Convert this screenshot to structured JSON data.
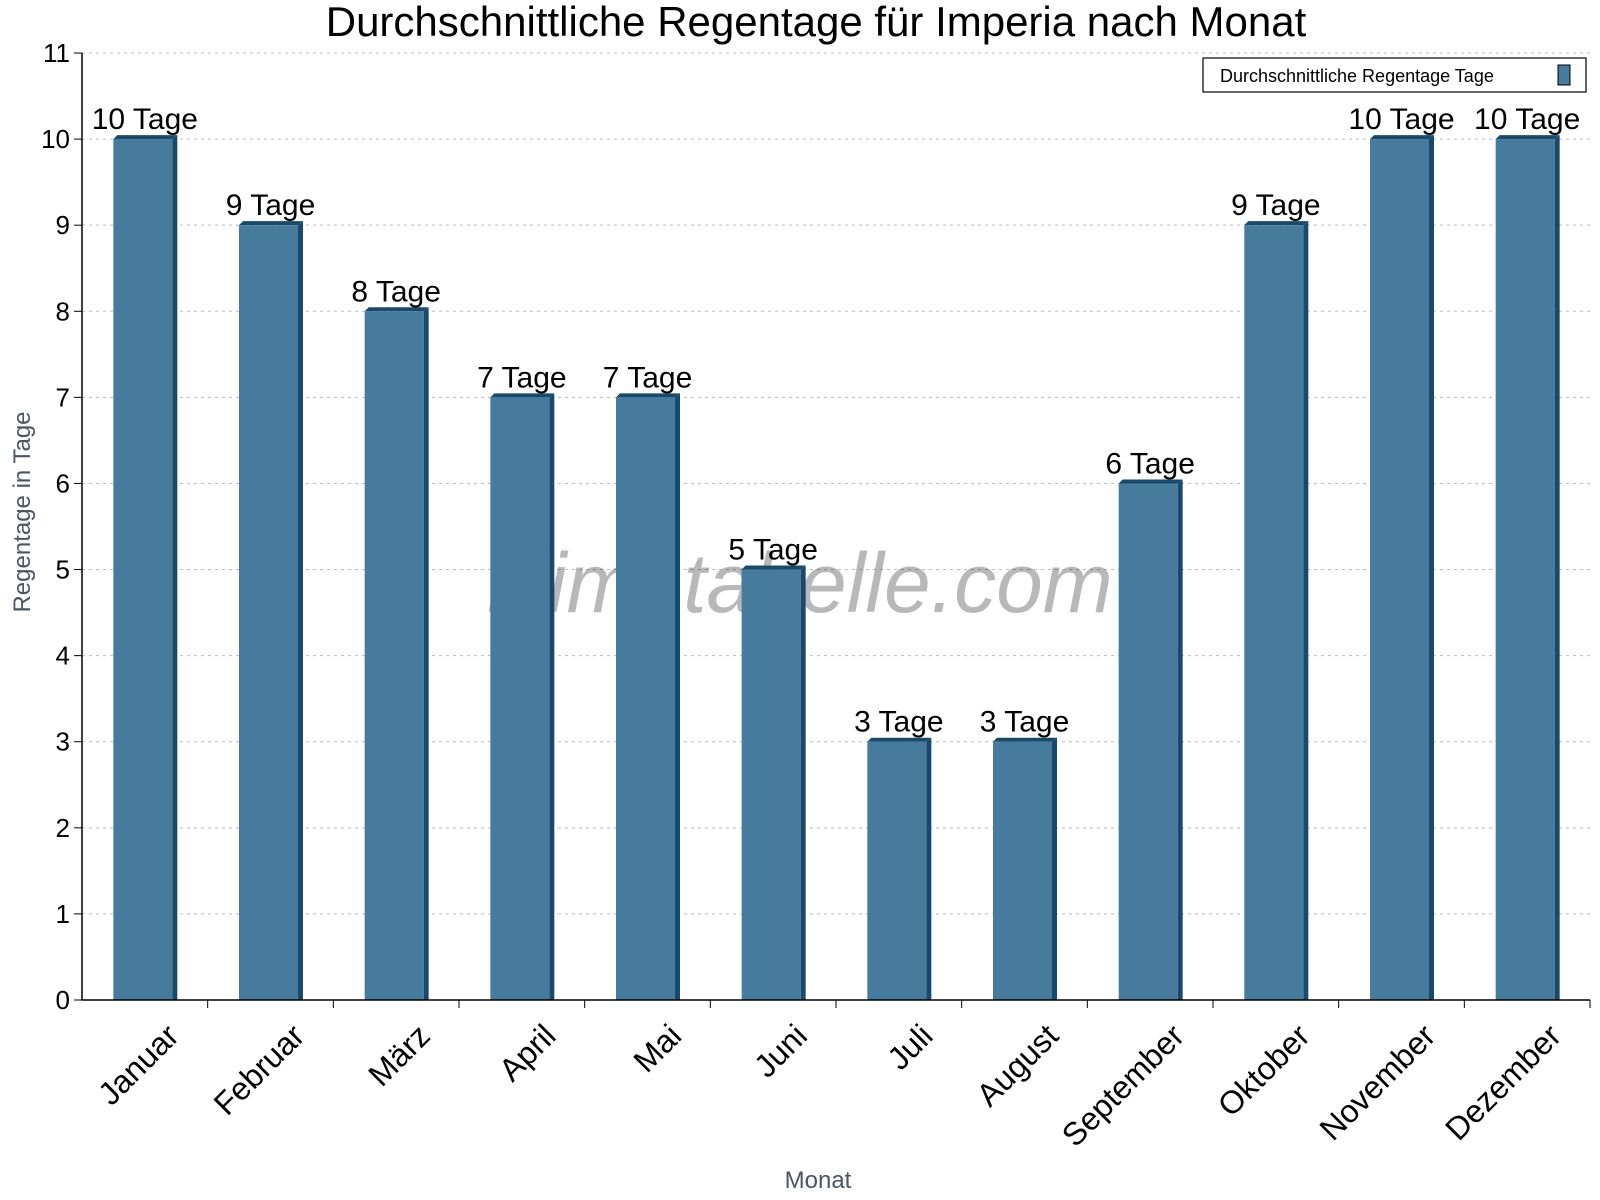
{
  "chart_data": {
    "type": "bar",
    "title": "Durchschnittliche Regentage für Imperia nach Monat",
    "xlabel": "Monat",
    "ylabel": "Regentage in Tage",
    "categories": [
      "Januar",
      "Februar",
      "März",
      "April",
      "Mai",
      "Juni",
      "Juli",
      "August",
      "September",
      "Oktober",
      "November",
      "Dezember"
    ],
    "series": [
      {
        "name": "Durchschnittliche Regentage Tage",
        "values": [
          10,
          9,
          8,
          7,
          7,
          5,
          3,
          3,
          6,
          9,
          10,
          10
        ]
      }
    ],
    "data_labels": [
      "10 Tage",
      "9 Tage",
      "8 Tage",
      "7 Tage",
      "7 Tage",
      "5 Tage",
      "3 Tage",
      "3 Tage",
      "6 Tage",
      "9 Tage",
      "10 Tage",
      "10 Tage"
    ],
    "ylim": [
      0,
      11
    ],
    "yticks": [
      0,
      1,
      2,
      3,
      4,
      5,
      6,
      7,
      8,
      9,
      10,
      11
    ],
    "grid": true,
    "legend_position": "top-right",
    "colors": {
      "bar": "#467b9d",
      "bar_dark": "#1a4a6b"
    },
    "watermark": "klimatabelle.com"
  }
}
